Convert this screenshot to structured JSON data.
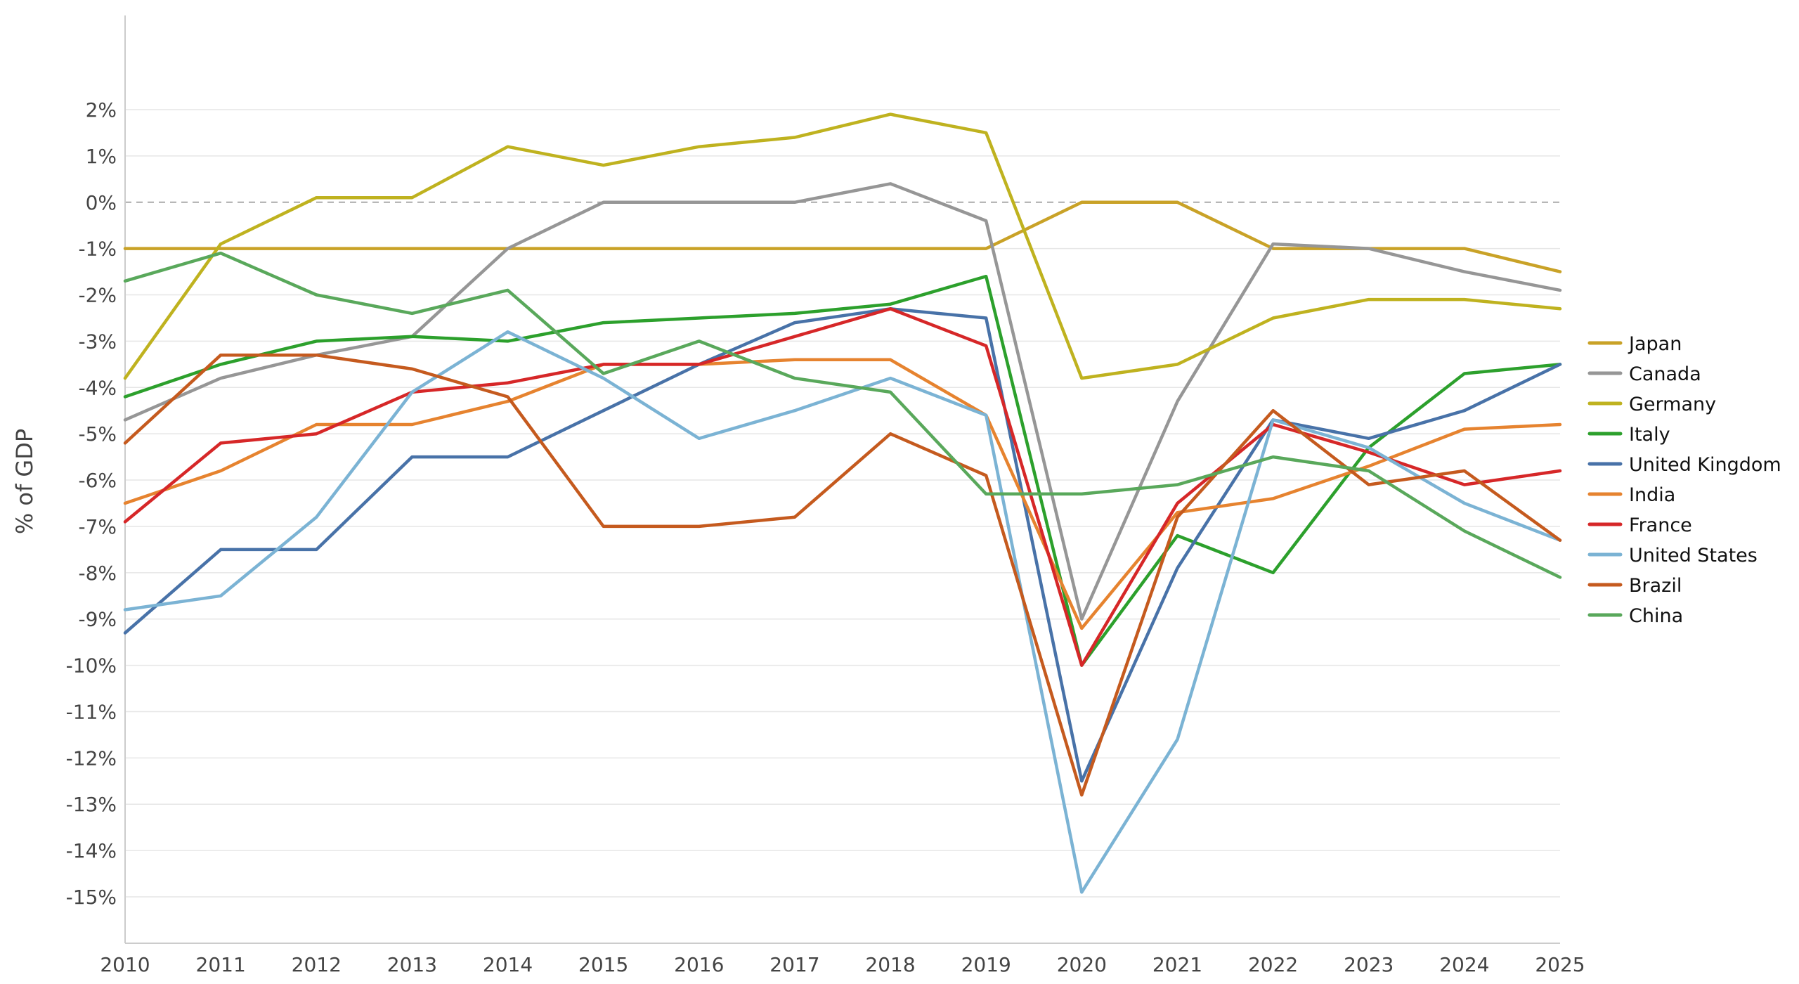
{
  "chart_data": {
    "type": "line",
    "title": "",
    "xlabel": "",
    "ylabel": "% of GDP",
    "x": [
      2010,
      2011,
      2012,
      2013,
      2014,
      2015,
      2016,
      2017,
      2018,
      2019,
      2020,
      2021,
      2022,
      2023,
      2024,
      2025
    ],
    "xlim": [
      2010,
      2025
    ],
    "ylim": [
      -16,
      4
    ],
    "y_ticks": [
      2,
      1,
      0,
      -1,
      -2,
      -3,
      -4,
      -5,
      -6,
      -7,
      -8,
      -9,
      -10,
      -11,
      -12,
      -13,
      -14,
      -15
    ],
    "y_tick_labels": [
      "2%",
      "1%",
      "0%",
      "-1%",
      "-2%",
      "-3%",
      "-4%",
      "-5%",
      "-6%",
      "-7%",
      "-8%",
      "-9%",
      "-10%",
      "-11%",
      "-12%",
      "-13%",
      "-14%",
      "-15%"
    ],
    "x_tick_labels": [
      "2010",
      "2011",
      "2012",
      "2013",
      "2014",
      "2015",
      "2016",
      "2017",
      "2018",
      "2019",
      "2020",
      "2021",
      "2022",
      "2023",
      "2024",
      "2025"
    ],
    "zero_line": true,
    "grid": "horizontal",
    "legend_position": "right",
    "series": [
      {
        "name": "Japan",
        "color": "#c9a227",
        "values": [
          -1,
          -1,
          -1,
          -1,
          -1,
          -1,
          -1,
          -1,
          -1,
          -1,
          0,
          0,
          -1,
          -1,
          -1,
          -1.5
        ]
      },
      {
        "name": "Canada",
        "color": "#969696",
        "values": [
          -4.7,
          -3.8,
          -3.3,
          -2.9,
          -1,
          0,
          0,
          0,
          0.4,
          -0.4,
          -9,
          -4.3,
          -0.9,
          -1,
          -1.5,
          -1.9
        ]
      },
      {
        "name": "Germany",
        "color": "#bfb21f",
        "values": [
          -3.8,
          -0.9,
          0.1,
          0.1,
          1.2,
          0.8,
          1.2,
          1.4,
          1.9,
          1.5,
          -3.8,
          -3.5,
          -2.5,
          -2.1,
          -2.1,
          -2.3
        ]
      },
      {
        "name": "Italy",
        "color": "#2ca02c",
        "values": [
          -4.2,
          -3.5,
          -3,
          -2.9,
          -3,
          -2.6,
          -2.5,
          -2.4,
          -2.2,
          -1.6,
          -10,
          -7.2,
          -8,
          -5.3,
          -3.7,
          -3.5
        ]
      },
      {
        "name": "United Kingdom",
        "color": "#4872a8",
        "values": [
          -9.3,
          -7.5,
          -7.5,
          -5.5,
          -5.5,
          -4.5,
          -3.5,
          -2.6,
          -2.3,
          -2.5,
          -12.5,
          -7.9,
          -4.7,
          -5.1,
          -4.5,
          -3.5
        ]
      },
      {
        "name": "India",
        "color": "#e6832f",
        "values": [
          -6.5,
          -5.8,
          -4.8,
          -4.8,
          -4.3,
          -3.5,
          -3.5,
          -3.4,
          -3.4,
          -4.6,
          -9.2,
          -6.7,
          -6.4,
          -5.7,
          -4.9,
          -4.8
        ]
      },
      {
        "name": "France",
        "color": "#d62728",
        "values": [
          -6.9,
          -5.2,
          -5,
          -4.1,
          -3.9,
          -3.5,
          -3.5,
          -2.9,
          -2.3,
          -3.1,
          -10,
          -6.5,
          -4.8,
          -5.4,
          -6.1,
          -5.8
        ]
      },
      {
        "name": "United States",
        "color": "#7bb3d4",
        "values": [
          -8.8,
          -8.5,
          -6.8,
          -4.1,
          -2.8,
          -3.8,
          -5.1,
          -4.5,
          -3.8,
          -4.6,
          -14.9,
          -11.6,
          -4.7,
          -5.3,
          -6.5,
          -7.3
        ]
      },
      {
        "name": "Brazil",
        "color": "#c55a1e",
        "values": [
          -5.2,
          -3.3,
          -3.3,
          -3.6,
          -4.2,
          -7,
          -7,
          -6.8,
          -5,
          -5.9,
          -12.8,
          -6.8,
          -4.5,
          -6.1,
          -5.8,
          -7.3
        ]
      },
      {
        "name": "China",
        "color": "#59a85b",
        "values": [
          -1.7,
          -1.1,
          -2,
          -2.4,
          -1.9,
          -3.7,
          -3,
          -3.8,
          -4.1,
          -6.3,
          -6.3,
          -6.1,
          -5.5,
          -5.8,
          -7.1,
          -8.1
        ]
      }
    ]
  }
}
